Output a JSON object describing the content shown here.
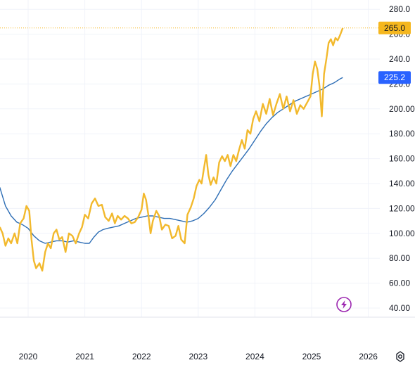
{
  "chart_data": {
    "type": "line",
    "title": "",
    "xlabel": "",
    "ylabel": "",
    "x_ticks": [
      "2020",
      "2021",
      "2022",
      "2023",
      "2024",
      "2025",
      "2026"
    ],
    "y_ticks": [
      "40.00",
      "60.00",
      "80.00",
      "100.00",
      "120.00",
      "140.00",
      "160.00",
      "180.00",
      "200.00",
      "220.0",
      "240.0",
      "260.0",
      "280.0"
    ],
    "ylim": [
      40,
      280
    ],
    "xlim": [
      2019.5,
      2026.0
    ],
    "grid": true,
    "last_price": {
      "label": "265.0",
      "value": 265.0,
      "color": "#f5b71f"
    },
    "ma_value": {
      "label": "225.2",
      "value": 225.2,
      "color": "#2962ff"
    },
    "series": [
      {
        "color": "#f2b92d",
        "points": [
          [
            2019.5,
            105
          ],
          [
            2019.55,
            100
          ],
          [
            2019.6,
            90
          ],
          [
            2019.65,
            96
          ],
          [
            2019.7,
            92
          ],
          [
            2019.76,
            100
          ],
          [
            2019.81,
            92
          ],
          [
            2019.86,
            108
          ],
          [
            2019.92,
            112
          ],
          [
            2019.97,
            122
          ],
          [
            2020.02,
            118
          ],
          [
            2020.06,
            95
          ],
          [
            2020.1,
            78
          ],
          [
            2020.14,
            72
          ],
          [
            2020.2,
            76
          ],
          [
            2020.25,
            70
          ],
          [
            2020.3,
            85
          ],
          [
            2020.35,
            92
          ],
          [
            2020.4,
            88
          ],
          [
            2020.45,
            100
          ],
          [
            2020.5,
            103
          ],
          [
            2020.55,
            95
          ],
          [
            2020.6,
            97
          ],
          [
            2020.66,
            85
          ],
          [
            2020.72,
            100
          ],
          [
            2020.78,
            98
          ],
          [
            2020.84,
            92
          ],
          [
            2020.9,
            100
          ],
          [
            2020.95,
            105
          ],
          [
            2021.0,
            115
          ],
          [
            2021.06,
            112
          ],
          [
            2021.12,
            124
          ],
          [
            2021.18,
            128
          ],
          [
            2021.24,
            122
          ],
          [
            2021.3,
            123
          ],
          [
            2021.36,
            113
          ],
          [
            2021.42,
            110
          ],
          [
            2021.48,
            116
          ],
          [
            2021.53,
            108
          ],
          [
            2021.58,
            114
          ],
          [
            2021.64,
            111
          ],
          [
            2021.7,
            114
          ],
          [
            2021.76,
            112
          ],
          [
            2021.82,
            108
          ],
          [
            2021.88,
            109
          ],
          [
            2021.94,
            113
          ],
          [
            2022.0,
            119
          ],
          [
            2022.04,
            132
          ],
          [
            2022.08,
            127
          ],
          [
            2022.12,
            115
          ],
          [
            2022.16,
            100
          ],
          [
            2022.2,
            110
          ],
          [
            2022.26,
            118
          ],
          [
            2022.31,
            114
          ],
          [
            2022.36,
            103
          ],
          [
            2022.42,
            107
          ],
          [
            2022.48,
            106
          ],
          [
            2022.54,
            96
          ],
          [
            2022.6,
            98
          ],
          [
            2022.65,
            106
          ],
          [
            2022.7,
            95
          ],
          [
            2022.76,
            92
          ],
          [
            2022.81,
            115
          ],
          [
            2022.87,
            121
          ],
          [
            2022.92,
            128
          ],
          [
            2022.97,
            138
          ],
          [
            2023.02,
            143
          ],
          [
            2023.06,
            140
          ],
          [
            2023.1,
            152
          ],
          [
            2023.14,
            163
          ],
          [
            2023.18,
            147
          ],
          [
            2023.22,
            139
          ],
          [
            2023.27,
            145
          ],
          [
            2023.32,
            140
          ],
          [
            2023.37,
            157
          ],
          [
            2023.42,
            162
          ],
          [
            2023.47,
            158
          ],
          [
            2023.52,
            163
          ],
          [
            2023.57,
            154
          ],
          [
            2023.62,
            163
          ],
          [
            2023.67,
            158
          ],
          [
            2023.72,
            167
          ],
          [
            2023.77,
            175
          ],
          [
            2023.82,
            168
          ],
          [
            2023.87,
            183
          ],
          [
            2023.92,
            180
          ],
          [
            2023.97,
            192
          ],
          [
            2024.02,
            198
          ],
          [
            2024.08,
            190
          ],
          [
            2024.14,
            204
          ],
          [
            2024.2,
            196
          ],
          [
            2024.26,
            208
          ],
          [
            2024.32,
            195
          ],
          [
            2024.38,
            204
          ],
          [
            2024.44,
            212
          ],
          [
            2024.5,
            200
          ],
          [
            2024.56,
            210
          ],
          [
            2024.62,
            198
          ],
          [
            2024.68,
            207
          ],
          [
            2024.74,
            196
          ],
          [
            2024.8,
            203
          ],
          [
            2024.86,
            200
          ],
          [
            2024.92,
            205
          ],
          [
            2024.98,
            210
          ],
          [
            2025.02,
            228
          ],
          [
            2025.06,
            238
          ],
          [
            2025.1,
            232
          ],
          [
            2025.14,
            218
          ],
          [
            2025.18,
            194
          ],
          [
            2025.22,
            228
          ],
          [
            2025.26,
            240
          ],
          [
            2025.3,
            253
          ],
          [
            2025.34,
            256
          ],
          [
            2025.38,
            251
          ],
          [
            2025.42,
            257
          ],
          [
            2025.46,
            255
          ],
          [
            2025.5,
            259
          ],
          [
            2025.55,
            265
          ]
        ]
      },
      {
        "color": "#2e6eb5",
        "points": [
          [
            2019.5,
            137
          ],
          [
            2019.6,
            122
          ],
          [
            2019.7,
            114
          ],
          [
            2019.8,
            109
          ],
          [
            2019.9,
            107
          ],
          [
            2020.0,
            104
          ],
          [
            2020.1,
            98
          ],
          [
            2020.2,
            94
          ],
          [
            2020.3,
            92
          ],
          [
            2020.4,
            93
          ],
          [
            2020.5,
            94
          ],
          [
            2020.6,
            94
          ],
          [
            2020.7,
            93
          ],
          [
            2020.8,
            94
          ],
          [
            2020.9,
            93
          ],
          [
            2021.0,
            92
          ],
          [
            2021.08,
            92
          ],
          [
            2021.16,
            97
          ],
          [
            2021.24,
            101
          ],
          [
            2021.32,
            103
          ],
          [
            2021.4,
            104
          ],
          [
            2021.5,
            105
          ],
          [
            2021.6,
            106
          ],
          [
            2021.7,
            108
          ],
          [
            2021.8,
            110
          ],
          [
            2021.9,
            112
          ],
          [
            2022.0,
            113
          ],
          [
            2022.1,
            114
          ],
          [
            2022.2,
            114
          ],
          [
            2022.3,
            113
          ],
          [
            2022.4,
            112
          ],
          [
            2022.5,
            112
          ],
          [
            2022.6,
            111
          ],
          [
            2022.7,
            110
          ],
          [
            2022.8,
            109
          ],
          [
            2022.9,
            110
          ],
          [
            2023.0,
            112
          ],
          [
            2023.1,
            116
          ],
          [
            2023.2,
            121
          ],
          [
            2023.3,
            127
          ],
          [
            2023.4,
            135
          ],
          [
            2023.5,
            143
          ],
          [
            2023.6,
            150
          ],
          [
            2023.7,
            156
          ],
          [
            2023.8,
            162
          ],
          [
            2023.9,
            168
          ],
          [
            2024.0,
            175
          ],
          [
            2024.1,
            182
          ],
          [
            2024.2,
            188
          ],
          [
            2024.3,
            193
          ],
          [
            2024.4,
            197
          ],
          [
            2024.5,
            200
          ],
          [
            2024.6,
            203
          ],
          [
            2024.7,
            206
          ],
          [
            2024.8,
            208
          ],
          [
            2024.9,
            210
          ],
          [
            2025.0,
            212
          ],
          [
            2025.1,
            214
          ],
          [
            2025.2,
            216
          ],
          [
            2025.3,
            219
          ],
          [
            2025.4,
            221
          ],
          [
            2025.5,
            224
          ],
          [
            2025.55,
            225.2
          ]
        ]
      }
    ]
  },
  "icons": {
    "lightning": "lightning-icon",
    "settings": "gear-icon"
  }
}
